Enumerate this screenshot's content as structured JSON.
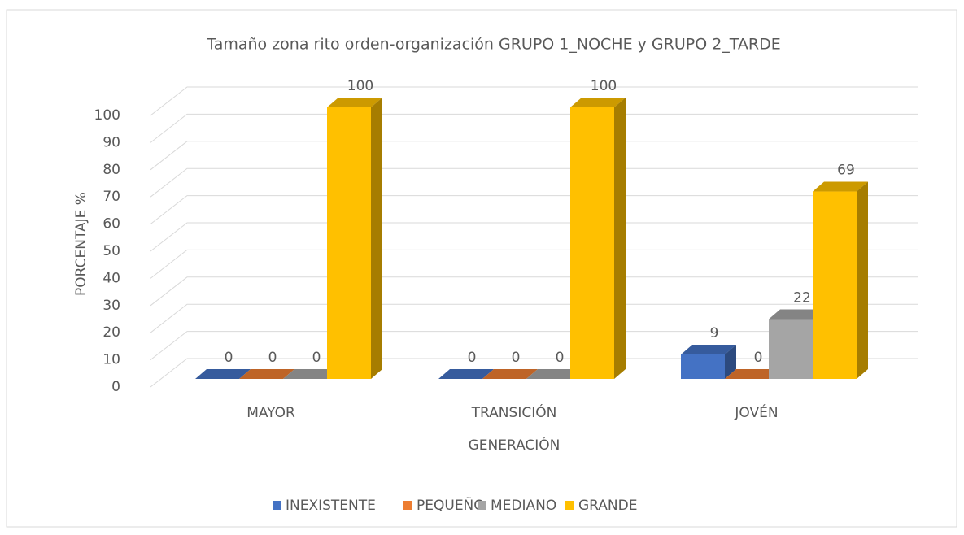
{
  "chart_data": {
    "type": "bar3d",
    "title": "Tamaño zona rito orden-organización GRUPO 1_NOCHE y GRUPO 2_TARDE",
    "x_label": "GENERACIÓN",
    "y_label": "PORCENTAJE %",
    "categories": [
      "MAYOR",
      "TRANSICIÓN",
      "JOVÉN"
    ],
    "series": [
      {
        "name": "INEXISTENTE",
        "color": "#4472c4",
        "values": [
          0,
          0,
          9
        ]
      },
      {
        "name": "PEQUEÑO",
        "color": "#ed7d31",
        "values": [
          0,
          0,
          0
        ]
      },
      {
        "name": "MEDIANO",
        "color": "#a5a5a5",
        "values": [
          0,
          0,
          22
        ]
      },
      {
        "name": "GRANDE",
        "color": "#ffc000",
        "values": [
          100,
          100,
          69
        ]
      }
    ],
    "ylim": [
      0,
      100
    ],
    "yticks": [
      0,
      10,
      20,
      30,
      40,
      50,
      60,
      70,
      80,
      90,
      100
    ],
    "grid": true,
    "legend": "bottom"
  }
}
